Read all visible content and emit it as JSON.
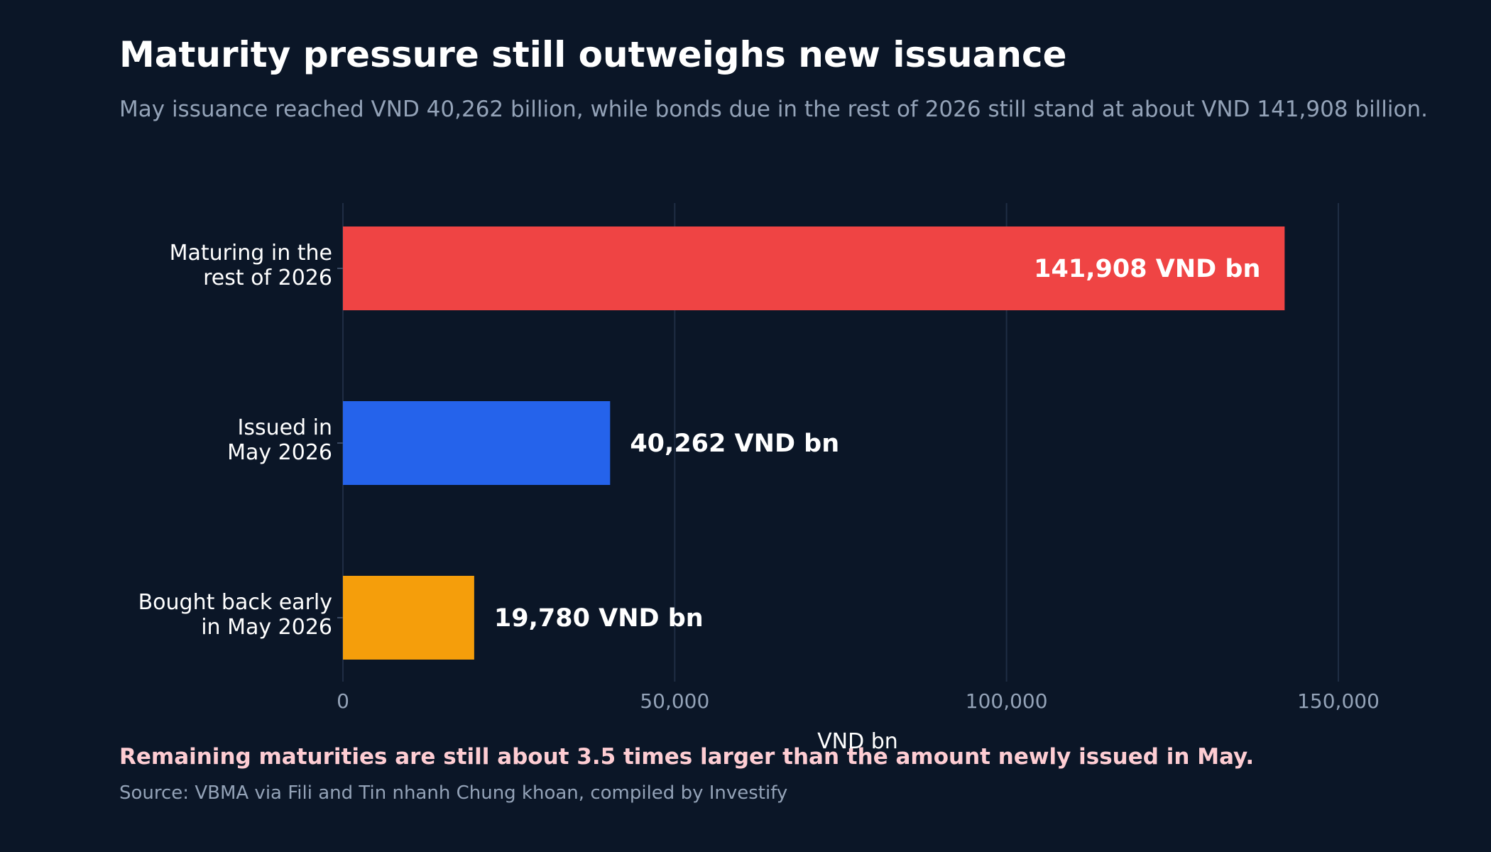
{
  "header": {
    "title": "Maturity pressure still outweighs new issuance",
    "subtitle": "May issuance reached VND 40,262 billion, while bonds due in the rest of 2026 still stand at about VND 141,908 billion."
  },
  "footer": {
    "note": "Remaining maturities are still about 3.5 times larger than the amount newly issued in May.",
    "source": "Source: VBMA via Fili and Tin nhanh Chung khoan, compiled by Investify"
  },
  "colors": {
    "background": "#0b1627",
    "grid": "#1f2d44",
    "maturing": "#ef4444",
    "issued": "#2563eb",
    "bought_back": "#f59e0b",
    "note": "#fecdd3",
    "muted": "#94a3b8"
  },
  "chart_data": {
    "type": "bar",
    "orientation": "horizontal",
    "categories": [
      [
        "Maturing in the",
        "rest of 2026"
      ],
      [
        "Issued in",
        "May 2026"
      ],
      [
        "Bought back early",
        "in May 2026"
      ]
    ],
    "values": [
      141908,
      40262,
      19780
    ],
    "value_labels": [
      "141,908 VND bn",
      "40,262 VND bn",
      "19,780 VND bn"
    ],
    "bar_colors": [
      "#ef4444",
      "#2563eb",
      "#f59e0b"
    ],
    "label_placement": [
      "inside",
      "outside",
      "outside"
    ],
    "xlabel": "VND bn",
    "xlim": [
      0,
      165000
    ],
    "xticks": [
      0,
      50000,
      100000,
      150000
    ],
    "xtick_labels": [
      "0",
      "50,000",
      "100,000",
      "150,000"
    ],
    "grid": "vertical"
  }
}
